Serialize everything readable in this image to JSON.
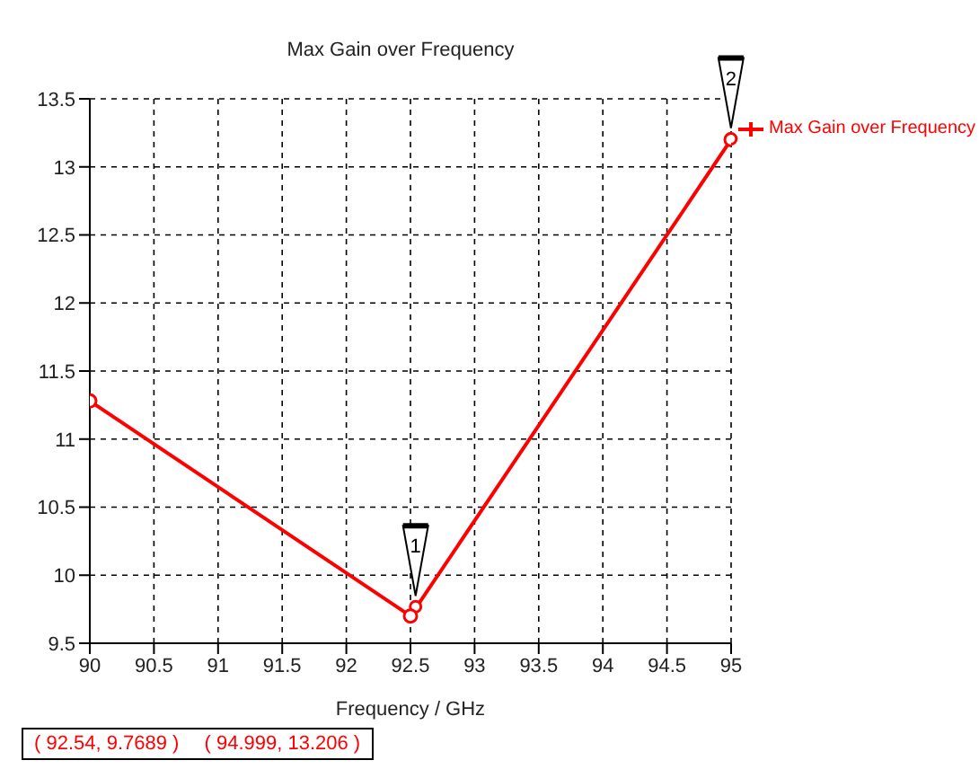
{
  "chart_data": {
    "type": "line",
    "title": "Max Gain over Frequency",
    "xlabel": "Frequency / GHz",
    "x": [
      90,
      92.5,
      95
    ],
    "series": [
      {
        "name": "Max Gain over Frequency",
        "color": "#ff0000",
        "values": [
          11.28,
          9.7,
          13.2
        ]
      }
    ],
    "xlim": [
      90,
      95
    ],
    "xticks": [
      90,
      90.5,
      91,
      91.5,
      92,
      92.5,
      93,
      93.5,
      94,
      94.5,
      95
    ],
    "ylim": [
      9.5,
      13.5
    ],
    "yticks": [
      9.5,
      10,
      10.5,
      11,
      11.5,
      12,
      12.5,
      13,
      13.5
    ],
    "grid": true,
    "legend": "top right",
    "marker": "circle",
    "line_style": "solid",
    "annotations": [
      {
        "text": "1",
        "x": 92.54,
        "y": 9.7689
      },
      {
        "text": "2",
        "x": 94.999,
        "y": 13.206
      },
      "( 92.54, 9.7689 )",
      "( 94.999, 13.206 )"
    ]
  }
}
